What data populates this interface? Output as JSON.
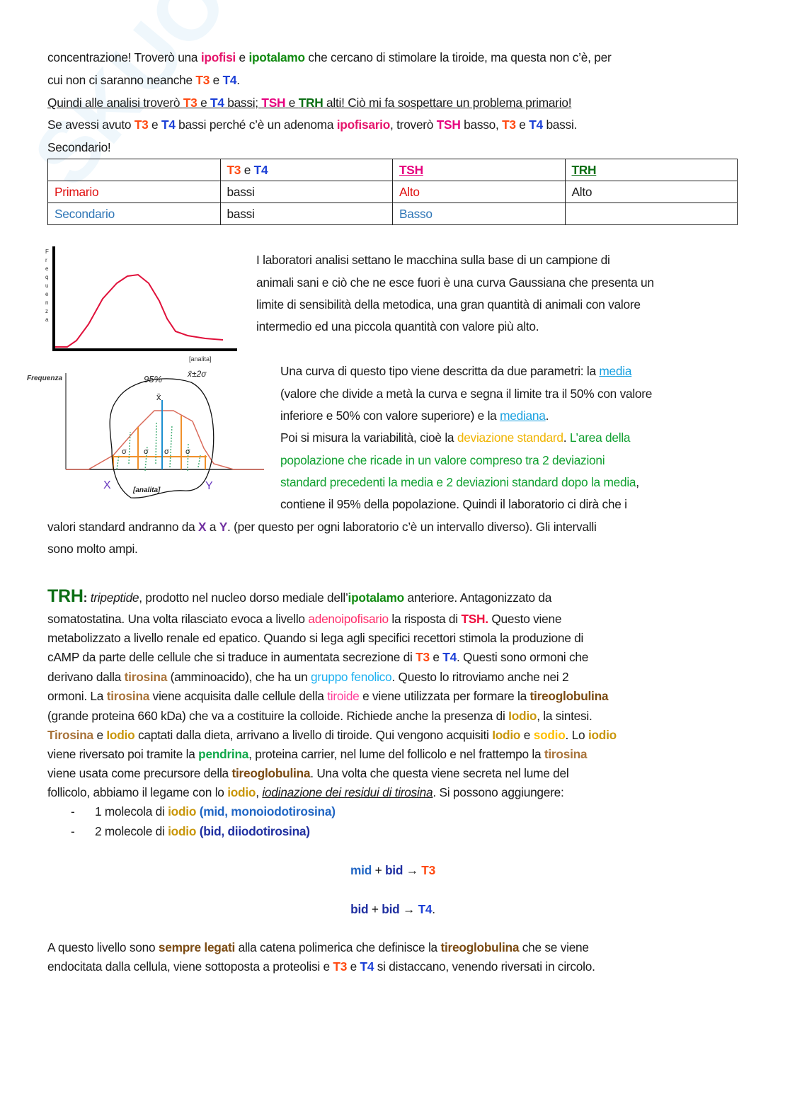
{
  "watermark": "SKUOLA.net",
  "intro_lines": [
    {
      "segments": [
        [
          "concentrazione! Troverò una ",
          "n"
        ],
        [
          "ipofisi",
          "ip"
        ],
        [
          " e ",
          "n"
        ],
        [
          "ipotalamo",
          "gr"
        ],
        [
          " che cercano di stimolare la tiroide, ma questa non c’è, per",
          "n"
        ]
      ]
    },
    {
      "segments": [
        [
          "cui non ci saranno neanche ",
          "n"
        ],
        [
          "T3",
          "t3"
        ],
        [
          " e ",
          "n"
        ],
        [
          "T4",
          "t4"
        ],
        [
          ".",
          "n"
        ]
      ]
    },
    {
      "underline": true,
      "segments": [
        [
          "Quindi alle analisi troverò ",
          "n"
        ],
        [
          "T3",
          "t3"
        ],
        [
          " e ",
          "n"
        ],
        [
          "T4",
          "t4"
        ],
        [
          " bassi; ",
          "n"
        ],
        [
          "TSH",
          "tsh"
        ],
        [
          " e ",
          "n"
        ],
        [
          "TRH",
          "trh"
        ],
        [
          " alti! Ciò mi fa sospettare un problema primario!",
          "n"
        ]
      ]
    },
    {
      "segments": [
        [
          "Se avessi avuto ",
          "n"
        ],
        [
          "T3",
          "t3"
        ],
        [
          " e ",
          "n"
        ],
        [
          "T4",
          "t4"
        ],
        [
          " bassi perché c’è un adenoma ",
          "n"
        ],
        [
          "ipofisario",
          "ip"
        ],
        [
          ", troverò ",
          "n"
        ],
        [
          "TSH",
          "tsh"
        ],
        [
          " basso, ",
          "n"
        ],
        [
          "T3",
          "t3"
        ],
        [
          " e ",
          "n"
        ],
        [
          "T4",
          "t4"
        ],
        [
          " bassi.",
          "n"
        ]
      ]
    },
    {
      "segments": [
        [
          "Secondario!",
          "n"
        ]
      ]
    }
  ],
  "table": {
    "header": {
      "t3": "T3",
      "e": " e ",
      "t4": "T4",
      "tsh": "TSH",
      "trh": "TRH"
    },
    "rows": [
      {
        "label": "Primario",
        "t3t4": "bassi",
        "tsh": "Alto",
        "trh": "Alto"
      },
      {
        "label": "Secondario",
        "t3t4": "bassi",
        "tsh": "Basso",
        "trh": ""
      }
    ]
  },
  "figure1": {
    "ylabel": "Frequenza",
    "xlabel": "[analita]"
  },
  "figure2": {
    "ylabel": "Frequenza",
    "xlabel": "[analita]",
    "x_mark": "X",
    "y_mark": "Y",
    "note_95": "95%",
    "note_range": "x̄±2σ",
    "mean_mark": "x̄",
    "sigma": "σ"
  },
  "right_lines_a": [
    {
      "segments": [
        [
          "I laboratori analisi settano le macchina sulla base di un campione di",
          "n"
        ]
      ]
    },
    {
      "segments": [
        [
          "animali sani e ciò che ne esce fuori è una curva Gaussiana che presenta un",
          "n"
        ]
      ]
    },
    {
      "segments": [
        [
          "limite di sensibilità della metodica, una gran quantità di animali con valore",
          "n"
        ]
      ]
    },
    {
      "segments": [
        [
          "intermedio ed una piccola quantità con valore più alto.",
          "n"
        ]
      ]
    }
  ],
  "right_lines_b": [
    {
      "segments": [
        [
          "Una curva di questo tipo viene descritta da due parametri: la ",
          "n"
        ],
        [
          "media",
          "link"
        ]
      ]
    },
    {
      "segments": [
        [
          "(valore che divide a metà la curva e segna il limite tra il 50% con valore",
          "n"
        ]
      ]
    },
    {
      "segments": [
        [
          "inferiore e 50% con valore superiore) e la ",
          "n"
        ],
        [
          "mediana",
          "link"
        ],
        [
          ".",
          "n"
        ]
      ]
    },
    {
      "segments": [
        [
          "Poi si misura la variabilità, cioè la ",
          "n"
        ],
        [
          "deviazione standard",
          "yel"
        ],
        [
          ". ",
          "n"
        ],
        [
          "L’area della",
          "grn"
        ]
      ]
    },
    {
      "segments": [
        [
          "popolazione che ricade in un valore compreso tra 2 deviazioni",
          "grn"
        ]
      ]
    },
    {
      "segments": [
        [
          "standard precedenti la media e 2 deviazioni standard dopo la media",
          "grn"
        ],
        [
          ",",
          "n"
        ]
      ]
    },
    {
      "segments": [
        [
          "contiene il 95% della popolazione. Quindi il laboratorio ci dirà che i",
          "n"
        ]
      ]
    }
  ],
  "full_lines": [
    {
      "segments": [
        [
          "valori standard andranno da ",
          "n"
        ],
        [
          "X",
          "pur"
        ],
        [
          " a ",
          "n"
        ],
        [
          "Y",
          "pur"
        ],
        [
          ". (per questo per ogni laboratorio c’è un intervallo diverso). Gli intervalli",
          "n"
        ]
      ]
    },
    {
      "segments": [
        [
          "sono molto ampi.",
          "n"
        ]
      ]
    }
  ],
  "trh_lines": [
    {
      "segments": [
        [
          "TRH",
          "trhbig"
        ],
        [
          ": ",
          "b"
        ],
        [
          "tripeptide",
          "i"
        ],
        [
          ", prodotto nel nucleo dorso mediale dell’",
          "n"
        ],
        [
          "ipotalamo",
          "gr"
        ],
        [
          " anteriore. Antagonizzato da",
          "n"
        ]
      ]
    },
    {
      "segments": [
        [
          "somatostatina. Una volta rilasciato evoca a livello ",
          "n"
        ],
        [
          "adenoipofisario",
          "adeno"
        ],
        [
          " la risposta di ",
          "n"
        ],
        [
          "TSH.",
          "tshred"
        ],
        [
          " Questo viene",
          "n"
        ]
      ]
    },
    {
      "segments": [
        [
          "metabolizzato a livello renale ed epatico. Quando si lega agli specifici recettori stimola la produzione di",
          "n"
        ]
      ]
    },
    {
      "segments": [
        [
          "cAMP da parte delle cellule che si traduce in aumentata secrezione di ",
          "n"
        ],
        [
          "T3",
          "t3"
        ],
        [
          " e ",
          "n"
        ],
        [
          "T4",
          "t4"
        ],
        [
          ". Questi sono ormoni che",
          "n"
        ]
      ]
    },
    {
      "segments": [
        [
          "derivano dalla ",
          "n"
        ],
        [
          "tirosina",
          "tir"
        ],
        [
          " (amminoacido), che ha un ",
          "n"
        ],
        [
          "gruppo fenolico",
          "fen"
        ],
        [
          ". Questo lo ritroviamo anche nei 2",
          "n"
        ]
      ]
    },
    {
      "segments": [
        [
          "ormoni. La ",
          "n"
        ],
        [
          "tirosina",
          "tir"
        ],
        [
          " viene acquisita dalle cellule della ",
          "n"
        ],
        [
          "tiroide",
          "pink"
        ],
        [
          " e viene utilizzata per formare la ",
          "n"
        ],
        [
          "tireoglobulina",
          "tg"
        ]
      ]
    },
    {
      "segments": [
        [
          "(grande proteina 660 kDa) che va a costituire la colloide. Richiede anche la presenza di ",
          "n"
        ],
        [
          "Iodio",
          "io"
        ],
        [
          ", la sintesi.",
          "n"
        ]
      ]
    },
    {
      "segments": [
        [
          "Tirosina",
          "tir"
        ],
        [
          " e ",
          "n"
        ],
        [
          "Iodio",
          "io"
        ],
        [
          " captati dalla dieta, arrivano a livello di tiroide. Qui vengono acquisiti ",
          "n"
        ],
        [
          "Iodio",
          "io"
        ],
        [
          " e ",
          "n"
        ],
        [
          "sodio",
          "sod"
        ],
        [
          ". Lo ",
          "n"
        ],
        [
          "iodio",
          "io"
        ]
      ]
    },
    {
      "segments": [
        [
          "viene riversato poi tramite la ",
          "n"
        ],
        [
          "pendrina",
          "pen"
        ],
        [
          ", proteina carrier, nel lume del follicolo e nel frattempo la ",
          "n"
        ],
        [
          "tirosina",
          "tir"
        ]
      ]
    },
    {
      "segments": [
        [
          "viene usata come precursore della ",
          "n"
        ],
        [
          "tireoglobulina",
          "tg"
        ],
        [
          ". Una volta che questa viene secreta nel lume del",
          "n"
        ]
      ]
    },
    {
      "segments": [
        [
          "follicolo, abbiamo il legame con lo ",
          "n"
        ],
        [
          "iodio",
          "io"
        ],
        [
          ", ",
          "n"
        ],
        [
          "iodinazione dei residui di tirosina",
          "iu"
        ],
        [
          ". Si possono aggiungere:",
          "n"
        ]
      ]
    }
  ],
  "list": {
    "bullet": "-",
    "items": [
      {
        "segments": [
          [
            "1 molecola di ",
            "n"
          ],
          [
            "iodio",
            "io"
          ],
          [
            " ",
            "n"
          ],
          [
            "(mid, monoiodotirosina)",
            "mid"
          ]
        ]
      },
      {
        "segments": [
          [
            "2 molecole di ",
            "n"
          ],
          [
            "iodio",
            "io"
          ],
          [
            " ",
            "n"
          ],
          [
            "(bid, diiodotirosina)",
            "bid"
          ]
        ]
      }
    ]
  },
  "formulas": [
    {
      "segments": [
        [
          "mid",
          "mid"
        ],
        [
          " + ",
          "n"
        ],
        [
          "bid",
          "bid"
        ],
        [
          " → ",
          "n"
        ],
        [
          "T3",
          "t3"
        ]
      ]
    },
    {
      "segments": [
        [
          "bid",
          "bid"
        ],
        [
          " + ",
          "n"
        ],
        [
          "bid",
          "bid"
        ],
        [
          " → ",
          "n"
        ],
        [
          "T4",
          "t4"
        ],
        [
          ".",
          "n"
        ]
      ]
    }
  ],
  "closing_lines": [
    {
      "segments": [
        [
          "A questo livello sono ",
          "n"
        ],
        [
          "sempre legati",
          "tg"
        ],
        [
          " alla catena polimerica che definisce la ",
          "n"
        ],
        [
          "tireoglobulina",
          "tg"
        ],
        [
          " che se viene",
          "n"
        ]
      ]
    },
    {
      "segments": [
        [
          "endocitata dalla cellula, viene sottoposta a proteolisi e ",
          "n"
        ],
        [
          "T3",
          "t3"
        ],
        [
          " e ",
          "n"
        ],
        [
          "T4",
          "t4"
        ],
        [
          " si distaccano, venendo riversati in circolo.",
          "n"
        ]
      ]
    }
  ]
}
